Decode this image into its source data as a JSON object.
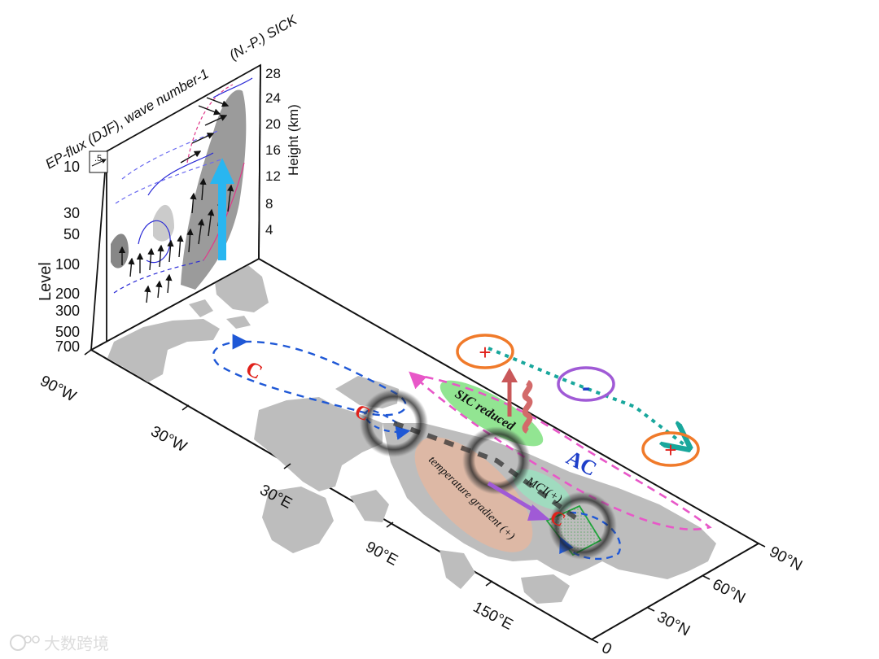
{
  "panel": {
    "title_left": "EP-flux (DJF), wave number-1",
    "title_right": "(N.-P.) SICK",
    "level_axis_title": "Level",
    "height_axis_title": "Height (km)",
    "level_ticks": [
      "10",
      "30",
      "50",
      "100",
      "200",
      "300",
      "500",
      "700"
    ],
    "height_ticks": [
      "28",
      "24",
      "20",
      "16",
      "12",
      "8",
      "4"
    ],
    "ref_vector": ".5"
  },
  "map": {
    "lon_ticks": [
      "90°W",
      "30°W",
      "30°E",
      "90°E",
      "150°E"
    ],
    "lat_ticks": [
      "90°N",
      "60°N",
      "30°N",
      "0"
    ]
  },
  "labels": {
    "cyclone_atlantic": "C",
    "cyclone_europe": "C",
    "cyclone_asia": "C",
    "anticyclone": "AC",
    "sic_reduced": "SIC reduced",
    "mci": "MCI(+)",
    "temp_gradient": "temperature gradient (+)",
    "plus_1": "+",
    "minus": "-",
    "plus_2": "+"
  },
  "watermark": {
    "text": "大数跨境"
  },
  "colors": {
    "land": "#bdbdbd",
    "cyclone": "#e0211b",
    "anticyclone": "#1f3fc9",
    "flux_arrow": "#29b6f0",
    "wave_train": "#19a79c",
    "plus_ring": "#f07a2a",
    "minus_ring": "#a05ad6",
    "sic_patch": "#7fe07f",
    "temp_patch": "#e8b79e",
    "highlight_box": "#1fa43a",
    "magenta_dash": "#e857c8",
    "blue_dash": "#1f58d6"
  }
}
